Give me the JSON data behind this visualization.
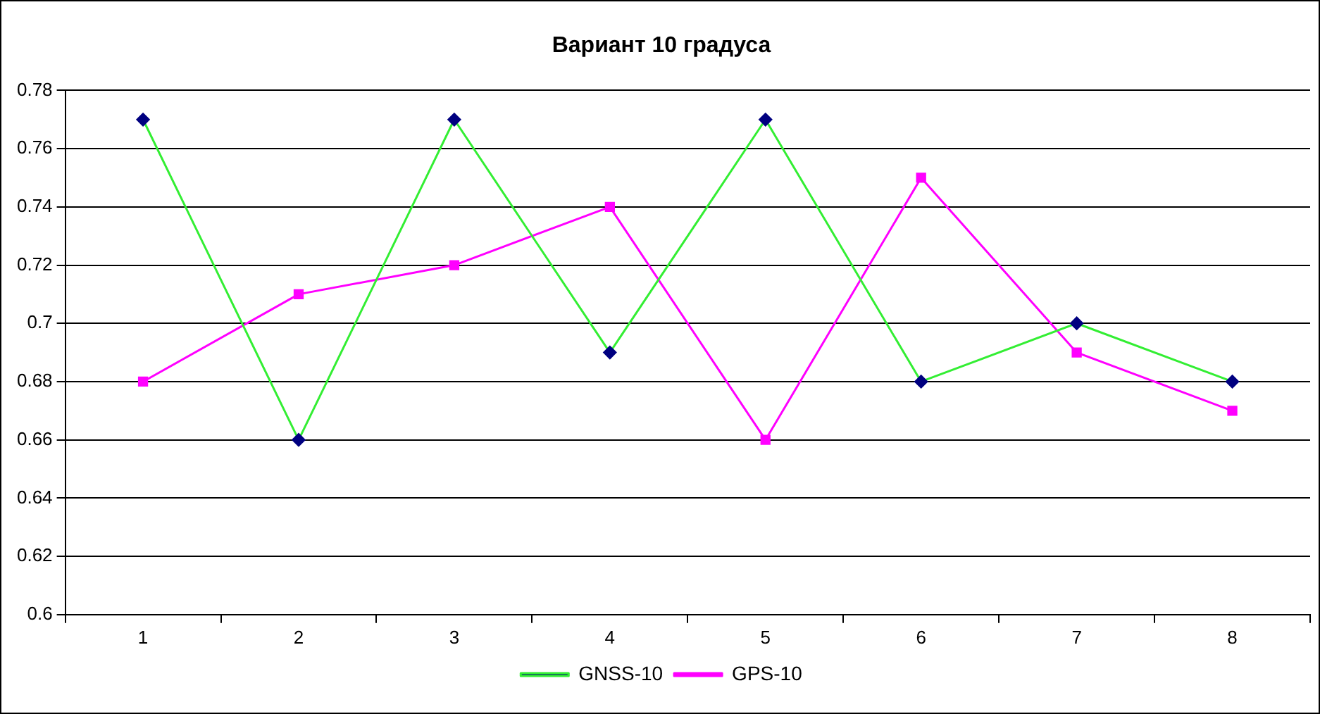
{
  "chart_data": {
    "type": "line",
    "title": "Вариант 10 градуса",
    "categories": [
      "1",
      "2",
      "3",
      "4",
      "5",
      "6",
      "7",
      "8"
    ],
    "series": [
      {
        "name": "GNSS-10",
        "color": "#33ee33",
        "marker": "diamond",
        "values": [
          0.77,
          0.66,
          0.77,
          0.69,
          0.77,
          0.68,
          0.7,
          0.68
        ]
      },
      {
        "name": "GPS-10",
        "color": "#ff00ff",
        "marker": "square",
        "values": [
          0.68,
          0.71,
          0.72,
          0.74,
          0.66,
          0.75,
          0.69,
          0.67
        ]
      }
    ],
    "ylim": [
      0.6,
      0.78
    ],
    "yticks": [
      0.6,
      0.62,
      0.64,
      0.66,
      0.68,
      0.7,
      0.72,
      0.74,
      0.76,
      0.78
    ],
    "grid": "y",
    "legend": "bottom"
  }
}
